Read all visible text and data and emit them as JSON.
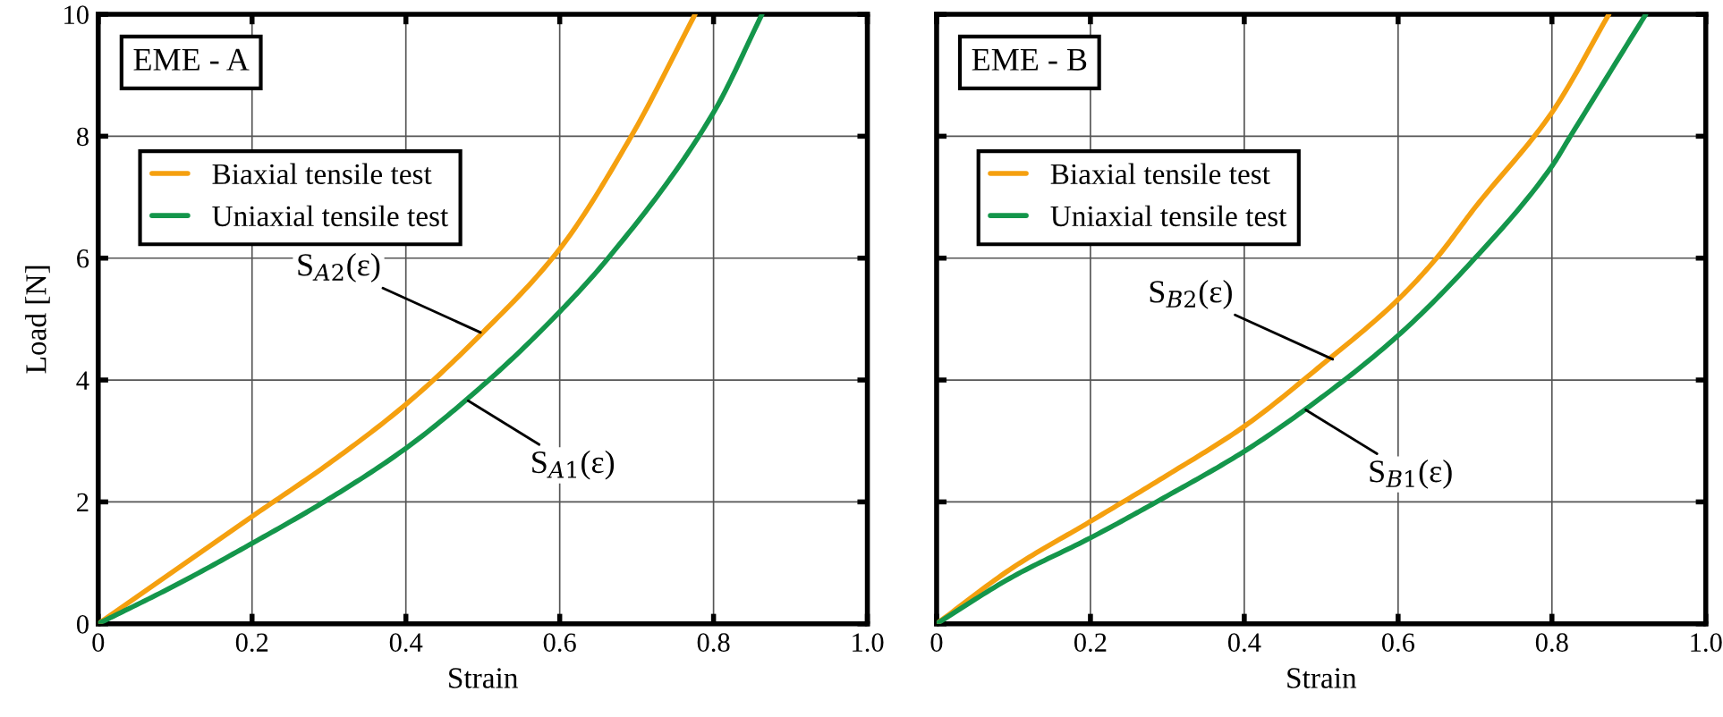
{
  "chart_data": [
    {
      "type": "line",
      "title": "EME - A",
      "xlabel": "Strain",
      "ylabel": "Load [N]",
      "xlim": [
        0,
        1.0
      ],
      "ylim": [
        0,
        10
      ],
      "xticks": [
        0,
        0.2,
        0.4,
        0.6,
        0.8,
        {
          "value": 1,
          "label": "1.0"
        }
      ],
      "yticks": [
        0,
        2,
        4,
        6,
        8,
        10
      ],
      "grid": true,
      "legend": "top left",
      "series": [
        {
          "name": "Biaxial tensile test",
          "color": "#f5a00f",
          "x": [
            0,
            0.1,
            0.2,
            0.3,
            0.4,
            0.5,
            0.6,
            0.693,
            0.776
          ],
          "values": [
            0,
            0.88,
            1.76,
            2.63,
            3.6,
            4.78,
            6.15,
            8,
            10
          ]
        },
        {
          "name": "Uniaxial tensile test",
          "color": "#14964b",
          "x": [
            0,
            0.1,
            0.2,
            0.3,
            0.4,
            0.508,
            0.6,
            0.663,
            0.8,
            0.863
          ],
          "values": [
            0,
            0.63,
            1.32,
            2.05,
            2.88,
            4,
            5.12,
            6,
            8.39,
            10
          ]
        }
      ],
      "annotations": [
        {
          "text": "S$_{A2}$(ε)",
          "x": 0.497,
          "y": 4.78
        },
        {
          "text": "S$_{A1}$(ε)",
          "x": 0.481,
          "y": 3.66
        }
      ]
    },
    {
      "type": "line",
      "title": "EME - B",
      "xlabel": "Strain",
      "xlim": [
        0,
        1.0
      ],
      "ylim": [
        0,
        10
      ],
      "xticks": [
        0,
        0.2,
        0.4,
        0.6,
        0.8,
        {
          "value": 1,
          "label": "1.0"
        }
      ],
      "yticks": [
        0,
        2,
        4,
        6,
        8,
        10
      ],
      "grid": true,
      "legend": "top left",
      "tick_labels": "x",
      "series": [
        {
          "name": "Biaxial tensile test",
          "color": "#f5a00f",
          "x": [
            0,
            0.1,
            0.2,
            0.3,
            0.4,
            0.5,
            0.6,
            0.65,
            0.7,
            0.8,
            0.874
          ],
          "values": [
            0,
            0.93,
            1.68,
            2.44,
            3.24,
            4.24,
            5.32,
            6,
            6.83,
            8.39,
            10
          ]
        },
        {
          "name": "Uniaxial tensile test",
          "color": "#14964b",
          "x": [
            0,
            0.1,
            0.2,
            0.3,
            0.4,
            0.5,
            0.6,
            0.7,
            0.8,
            0.824,
            0.922
          ],
          "values": [
            0,
            0.78,
            1.41,
            2.1,
            2.83,
            3.71,
            4.73,
            6,
            7.51,
            8,
            10
          ]
        }
      ],
      "annotations": [
        {
          "text": "S$_{B2}$(ε)",
          "x": 0.515,
          "y": 4.34
        },
        {
          "text": "S$_{B1}$(ε)",
          "x": 0.48,
          "y": 3.51
        }
      ]
    }
  ]
}
